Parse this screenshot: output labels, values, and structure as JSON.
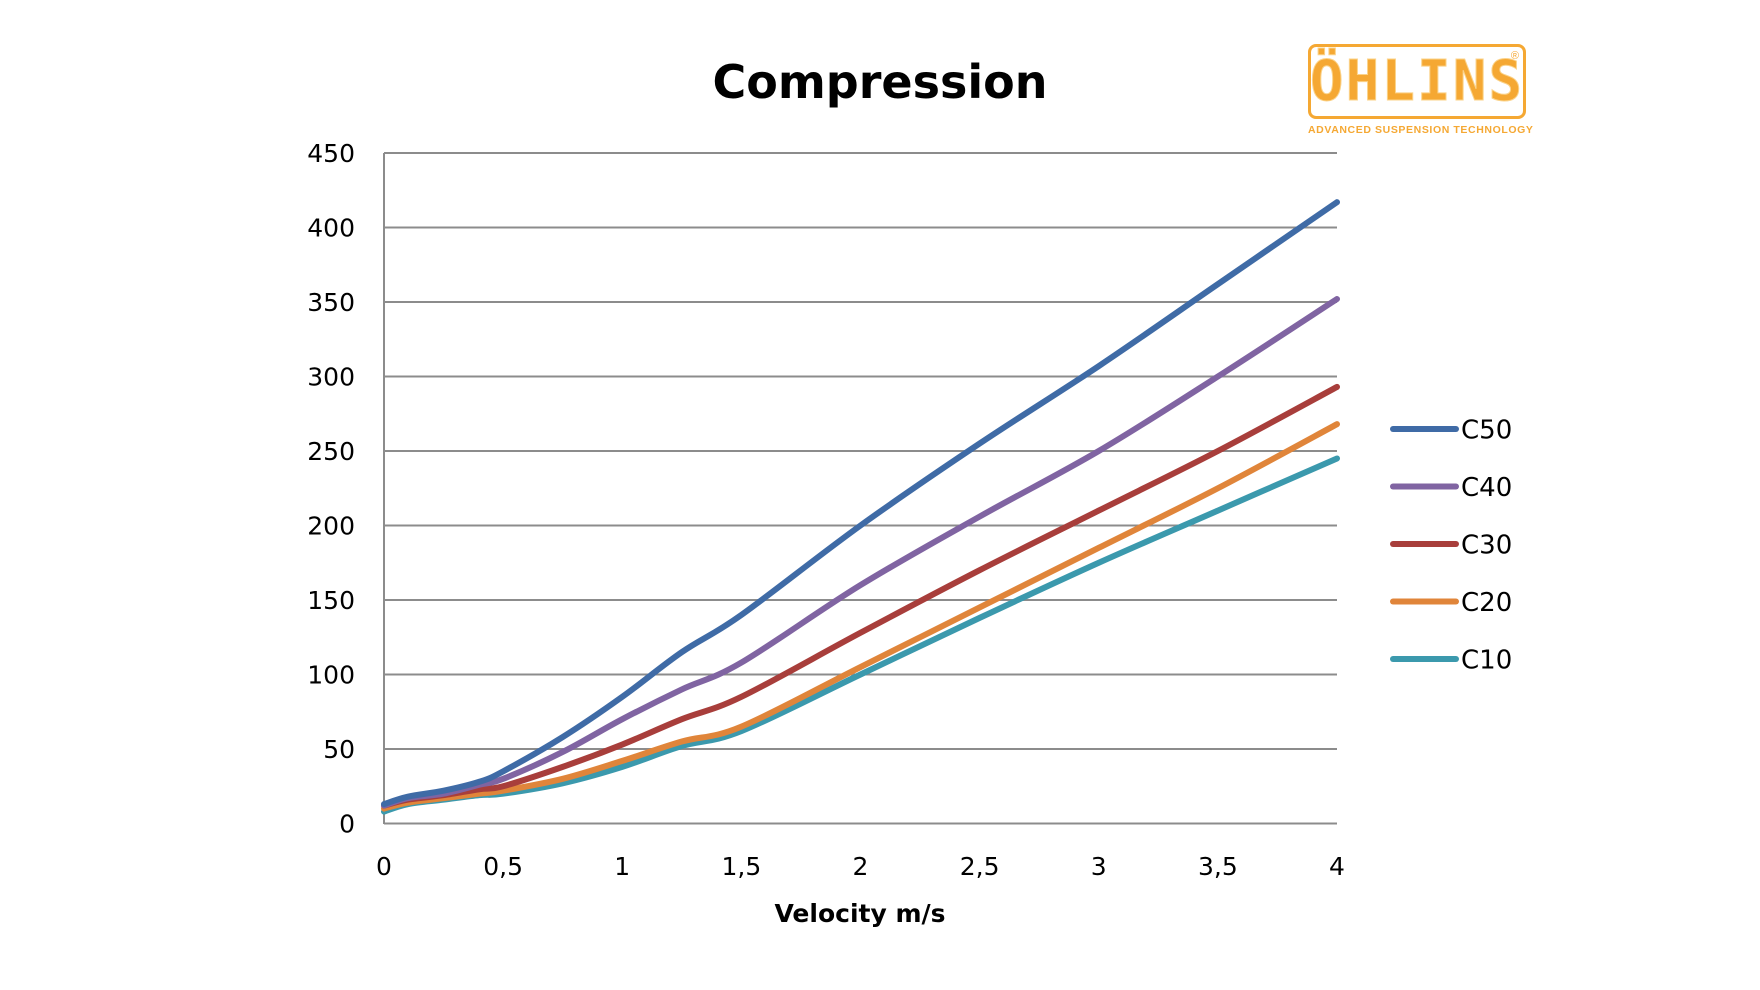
{
  "logo": {
    "brand": "ÖHLINS",
    "registered_mark": "®",
    "tagline": "ADVANCED SUSPENSION TECHNOLOGY",
    "color": "#F5A833"
  },
  "chart_data": {
    "type": "line",
    "title": "Compression",
    "xlabel": "Velocity m/s",
    "ylabel": "",
    "xlim": [
      0,
      4
    ],
    "ylim": [
      0,
      450
    ],
    "x_ticks": [
      "0",
      "0,5",
      "1",
      "1,5",
      "2",
      "2,5",
      "3",
      "3,5",
      "4"
    ],
    "y_ticks": [
      "0",
      "50",
      "100",
      "150",
      "200",
      "250",
      "300",
      "350",
      "400",
      "450"
    ],
    "grid": "horizontal",
    "legend_position": "right",
    "x": [
      0,
      0.1,
      0.25,
      0.4,
      0.5,
      0.75,
      1,
      1.25,
      1.5,
      2,
      2.5,
      3,
      3.5,
      4
    ],
    "series": [
      {
        "name": "C50",
        "color": "#3F6BA6",
        "values": [
          13,
          18,
          22,
          28,
          35,
          58,
          85,
          115,
          140,
          200,
          255,
          307,
          362,
          417
        ]
      },
      {
        "name": "C40",
        "color": "#8064A2",
        "values": [
          12,
          17,
          20,
          26,
          30,
          48,
          70,
          90,
          108,
          160,
          206,
          250,
          300,
          352
        ]
      },
      {
        "name": "C30",
        "color": "#A83E3B",
        "values": [
          12,
          16,
          19,
          23,
          25,
          38,
          53,
          70,
          85,
          128,
          170,
          210,
          250,
          293
        ]
      },
      {
        "name": "C20",
        "color": "#E0853A",
        "values": [
          10,
          14,
          17,
          20,
          22,
          30,
          42,
          55,
          65,
          105,
          145,
          185,
          225,
          268
        ]
      },
      {
        "name": "C10",
        "color": "#3B99AD",
        "values": [
          8,
          13,
          16,
          19,
          20,
          27,
          38,
          52,
          62,
          100,
          138,
          175,
          210,
          245
        ]
      }
    ]
  }
}
